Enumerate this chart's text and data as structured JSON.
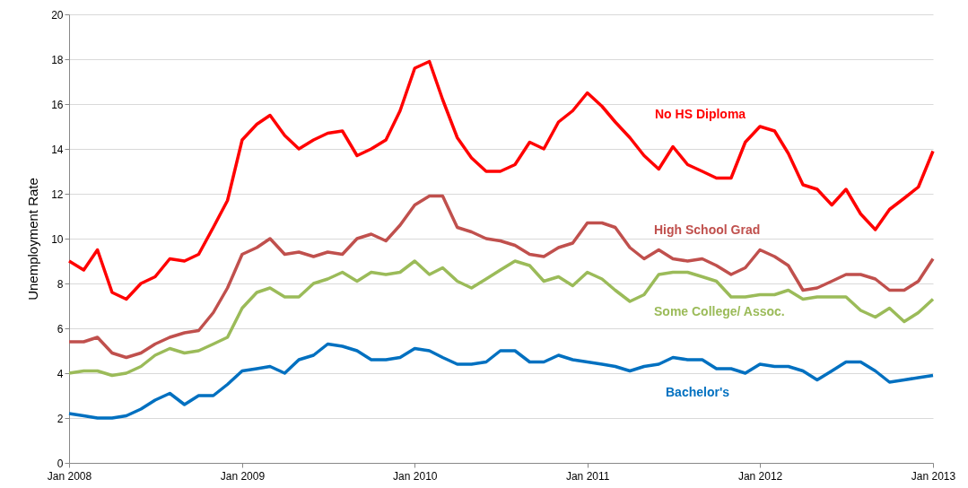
{
  "chart_data": {
    "type": "line",
    "ylabel": "Unemployment Rate",
    "ylim": [
      0,
      20
    ],
    "yticks": [
      0,
      2,
      4,
      6,
      8,
      10,
      12,
      14,
      16,
      18,
      20
    ],
    "grid": "y",
    "marker": "none",
    "line_style": "solid",
    "xlim": [
      "2008-01",
      "2013-01"
    ],
    "xticks": [
      {
        "value": "2008-01",
        "label": "Jan 2008"
      },
      {
        "value": "2009-01",
        "label": "Jan 2009"
      },
      {
        "value": "2010-01",
        "label": "Jan 2010"
      },
      {
        "value": "2011-01",
        "label": "Jan 2011"
      },
      {
        "value": "2012-01",
        "label": "Jan 2012"
      },
      {
        "value": "2013-01",
        "label": "Jan 2013"
      }
    ],
    "x": [
      "2008-01",
      "2008-02",
      "2008-03",
      "2008-04",
      "2008-05",
      "2008-06",
      "2008-07",
      "2008-08",
      "2008-09",
      "2008-10",
      "2008-11",
      "2008-12",
      "2009-01",
      "2009-02",
      "2009-03",
      "2009-04",
      "2009-05",
      "2009-06",
      "2009-07",
      "2009-08",
      "2009-09",
      "2009-10",
      "2009-11",
      "2009-12",
      "2010-01",
      "2010-02",
      "2010-03",
      "2010-04",
      "2010-05",
      "2010-06",
      "2010-07",
      "2010-08",
      "2010-09",
      "2010-10",
      "2010-11",
      "2010-12",
      "2011-01",
      "2011-02",
      "2011-03",
      "2011-04",
      "2011-05",
      "2011-06",
      "2011-07",
      "2011-08",
      "2011-09",
      "2011-10",
      "2011-11",
      "2011-12",
      "2012-01",
      "2012-02",
      "2012-03",
      "2012-04",
      "2012-05",
      "2012-06",
      "2012-07",
      "2012-08",
      "2012-09",
      "2012-10",
      "2012-11",
      "2012-12",
      "2013-01"
    ],
    "series": [
      {
        "name": "No HS Diploma",
        "color": "#ff0000",
        "values": [
          9.0,
          8.6,
          9.5,
          7.6,
          7.3,
          8.0,
          8.3,
          9.1,
          9.0,
          9.3,
          10.5,
          11.7,
          14.4,
          15.1,
          15.5,
          14.6,
          14.0,
          14.4,
          14.7,
          14.8,
          13.7,
          14.0,
          14.4,
          15.7,
          17.6,
          17.9,
          16.2,
          14.5,
          13.6,
          13.0,
          13.0,
          13.3,
          14.3,
          14.0,
          15.2,
          15.7,
          16.5,
          15.9,
          15.2,
          14.5,
          13.7,
          13.1,
          14.1,
          13.3,
          13.0,
          12.7,
          12.7,
          14.3,
          15.0,
          14.8,
          13.8,
          12.4,
          12.2,
          11.5,
          12.2,
          11.1,
          10.4,
          11.3,
          11.8,
          12.3,
          13.9
        ]
      },
      {
        "name": "High School Grad",
        "color": "#c0504d",
        "values": [
          5.4,
          5.4,
          5.6,
          4.9,
          4.7,
          4.9,
          5.3,
          5.6,
          5.8,
          5.9,
          6.7,
          7.8,
          9.3,
          9.6,
          10.0,
          9.3,
          9.4,
          9.2,
          9.4,
          9.3,
          10.0,
          10.2,
          9.9,
          10.6,
          11.5,
          11.9,
          11.9,
          10.5,
          10.3,
          10.0,
          9.9,
          9.7,
          9.3,
          9.2,
          9.6,
          9.8,
          10.7,
          10.7,
          10.5,
          9.6,
          9.1,
          9.5,
          9.1,
          9.0,
          9.1,
          8.8,
          8.4,
          8.7,
          9.5,
          9.2,
          8.8,
          7.7,
          7.8,
          8.1,
          8.4,
          8.4,
          8.2,
          7.7,
          7.7,
          8.1,
          9.1
        ]
      },
      {
        "name": "Some College/ Assoc.",
        "color": "#9bbb59",
        "values": [
          4.0,
          4.1,
          4.1,
          3.9,
          4.0,
          4.3,
          4.8,
          5.1,
          4.9,
          5.0,
          5.3,
          5.6,
          6.9,
          7.6,
          7.8,
          7.4,
          7.4,
          8.0,
          8.2,
          8.5,
          8.1,
          8.5,
          8.4,
          8.5,
          9.0,
          8.4,
          8.7,
          8.1,
          7.8,
          8.2,
          8.6,
          9.0,
          8.8,
          8.1,
          8.3,
          7.9,
          8.5,
          8.2,
          7.7,
          7.2,
          7.5,
          8.4,
          8.5,
          8.5,
          8.3,
          8.1,
          7.4,
          7.4,
          7.5,
          7.5,
          7.7,
          7.3,
          7.4,
          7.4,
          7.4,
          6.8,
          6.5,
          6.9,
          6.3,
          6.7,
          7.3
        ]
      },
      {
        "name": "Bachelor's",
        "color": "#0070c0",
        "values": [
          2.2,
          2.1,
          2.0,
          2.0,
          2.1,
          2.4,
          2.8,
          3.1,
          2.6,
          3.0,
          3.0,
          3.5,
          4.1,
          4.2,
          4.3,
          4.0,
          4.6,
          4.8,
          5.3,
          5.2,
          5.0,
          4.6,
          4.6,
          4.7,
          5.1,
          5.0,
          4.7,
          4.4,
          4.4,
          4.5,
          5.0,
          5.0,
          4.5,
          4.5,
          4.8,
          4.6,
          4.5,
          4.4,
          4.3,
          4.1,
          4.3,
          4.4,
          4.7,
          4.6,
          4.6,
          4.2,
          4.2,
          4.0,
          4.4,
          4.3,
          4.3,
          4.1,
          3.7,
          4.1,
          4.5,
          4.5,
          4.1,
          3.6,
          3.7,
          3.8,
          3.9
        ]
      }
    ]
  }
}
